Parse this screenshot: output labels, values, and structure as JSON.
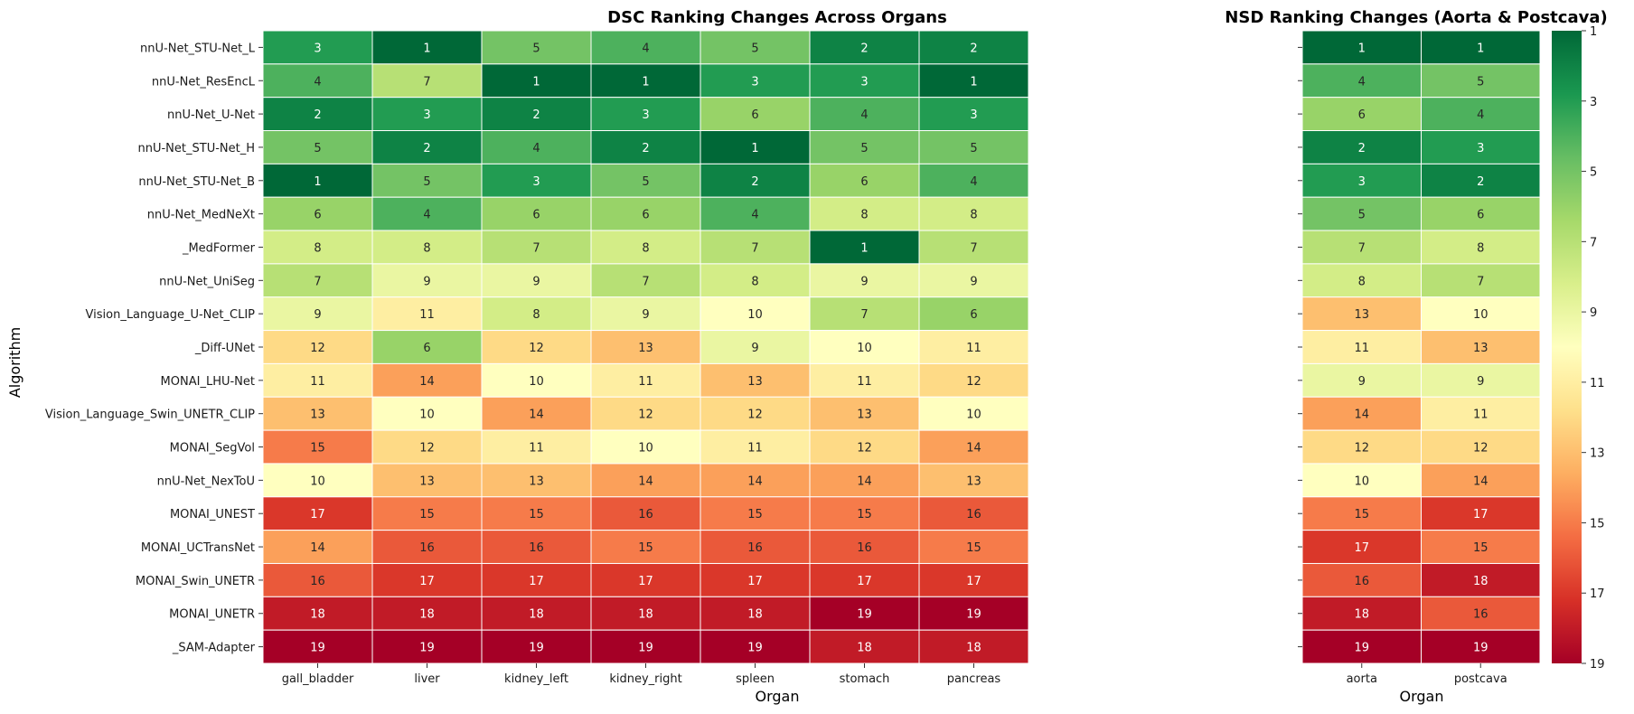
{
  "chart_data": [
    {
      "type": "heatmap",
      "title": "DSC Ranking Changes Across Organs",
      "xlabel": "Organ",
      "ylabel": "Algorithm",
      "columns": [
        "gall_bladder",
        "liver",
        "kidney_left",
        "kidney_right",
        "spleen",
        "stomach",
        "pancreas"
      ],
      "rows": [
        "nnU-Net_STU-Net_L",
        "nnU-Net_ResEncL",
        "nnU-Net_U-Net",
        "nnU-Net_STU-Net_H",
        "nnU-Net_STU-Net_B",
        "nnU-Net_MedNeXt",
        "_MedFormer",
        "nnU-Net_UniSeg",
        "Vision_Language_U-Net_CLIP",
        "_Diff-UNet",
        "MONAI_LHU-Net",
        "Vision_Language_Swin_UNETR_CLIP",
        "MONAI_SegVol",
        "nnU-Net_NexToU",
        "MONAI_UNEST",
        "MONAI_UCTransNet",
        "MONAI_Swin_UNETR",
        "MONAI_UNETR",
        "_SAM-Adapter"
      ],
      "values": [
        [
          3,
          1,
          5,
          4,
          5,
          2,
          2
        ],
        [
          4,
          7,
          1,
          1,
          3,
          3,
          1
        ],
        [
          2,
          3,
          2,
          3,
          6,
          4,
          3
        ],
        [
          5,
          2,
          4,
          2,
          1,
          5,
          5
        ],
        [
          1,
          5,
          3,
          5,
          2,
          6,
          4
        ],
        [
          6,
          4,
          6,
          6,
          4,
          8,
          8
        ],
        [
          8,
          8,
          7,
          8,
          7,
          1,
          7
        ],
        [
          7,
          9,
          9,
          7,
          8,
          9,
          9
        ],
        [
          9,
          11,
          8,
          9,
          10,
          7,
          6
        ],
        [
          12,
          6,
          12,
          13,
          9,
          10,
          11
        ],
        [
          11,
          14,
          10,
          11,
          13,
          11,
          12
        ],
        [
          13,
          10,
          14,
          12,
          12,
          13,
          10
        ],
        [
          15,
          12,
          11,
          10,
          11,
          12,
          14
        ],
        [
          10,
          13,
          13,
          14,
          14,
          14,
          13
        ],
        [
          17,
          15,
          15,
          16,
          15,
          15,
          16
        ],
        [
          14,
          16,
          16,
          15,
          16,
          16,
          15
        ],
        [
          16,
          17,
          17,
          17,
          17,
          17,
          17
        ],
        [
          18,
          18,
          18,
          18,
          18,
          19,
          19
        ],
        [
          19,
          19,
          19,
          19,
          19,
          18,
          18
        ]
      ]
    },
    {
      "type": "heatmap",
      "title": "NSD Ranking Changes (Aorta & Postcava)",
      "xlabel": "Organ",
      "columns": [
        "aorta",
        "postcava"
      ],
      "values": [
        [
          1,
          1
        ],
        [
          4,
          5
        ],
        [
          6,
          4
        ],
        [
          2,
          3
        ],
        [
          3,
          2
        ],
        [
          5,
          6
        ],
        [
          7,
          8
        ],
        [
          8,
          7
        ],
        [
          13,
          10
        ],
        [
          11,
          13
        ],
        [
          9,
          9
        ],
        [
          14,
          11
        ],
        [
          12,
          12
        ],
        [
          10,
          14
        ],
        [
          15,
          17
        ],
        [
          17,
          15
        ],
        [
          16,
          18
        ],
        [
          18,
          16
        ],
        [
          19,
          19
        ]
      ]
    }
  ],
  "colorbar": {
    "colormap": "RdYlGn_r",
    "range": [
      1,
      19
    ],
    "ticks": [
      "1",
      "3",
      "5",
      "7",
      "9",
      "11",
      "13",
      "15",
      "17",
      "19"
    ]
  }
}
